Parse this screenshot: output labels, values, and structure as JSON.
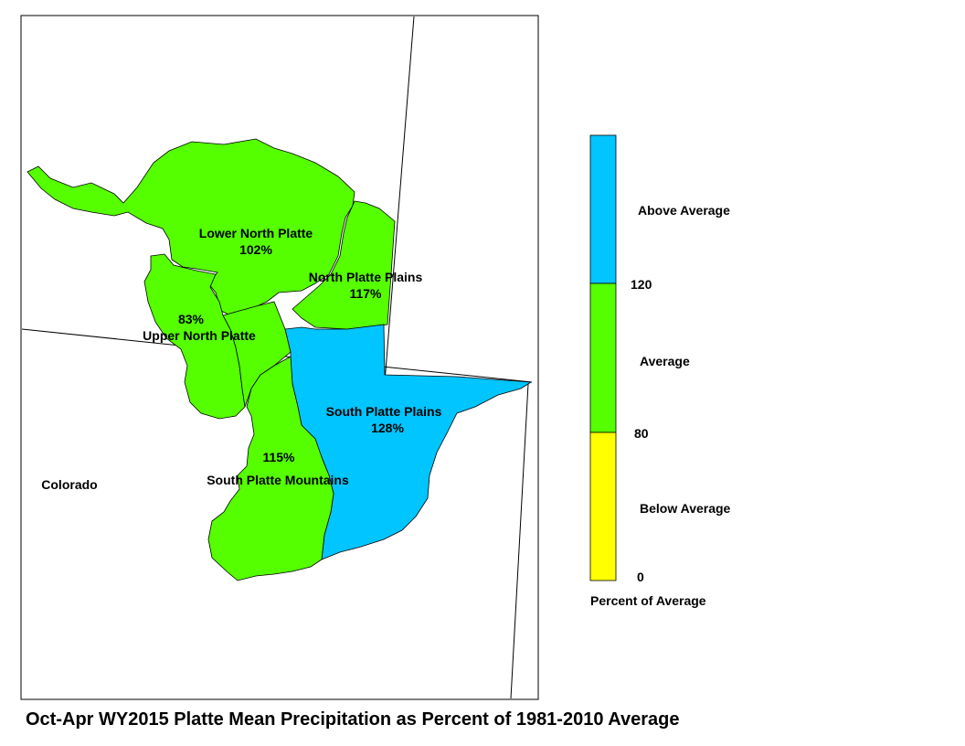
{
  "title": "Oct-Apr WY2015 Platte Mean Precipitation as Percent of 1981-2010 Average",
  "state_label": "Colorado",
  "regions": [
    {
      "name": "Lower North Platte",
      "percent": "102%",
      "category": "average"
    },
    {
      "name": "North Platte Plains",
      "percent": "117%",
      "category": "average"
    },
    {
      "name": "Upper North Platte",
      "percent": "83%",
      "category": "average"
    },
    {
      "name": "South Platte Plains",
      "percent": "128%",
      "category": "above"
    },
    {
      "name": "South Platte Mountains",
      "percent": "115%",
      "category": "average"
    }
  ],
  "legend": {
    "title": "Percent of Average",
    "categories": [
      {
        "label": "Above Average",
        "color": "#00c5ff",
        "min": 120
      },
      {
        "label": "Average",
        "color": "#55ff00",
        "min": 80,
        "max": 120
      },
      {
        "label": "Below Average",
        "color": "#ffff00",
        "min": 0,
        "max": 80
      }
    ],
    "ticks": [
      "120",
      "80",
      "0"
    ]
  },
  "colors": {
    "above": "#00c5ff",
    "average": "#55ff00",
    "below": "#ffff00",
    "outline": "#000000"
  }
}
